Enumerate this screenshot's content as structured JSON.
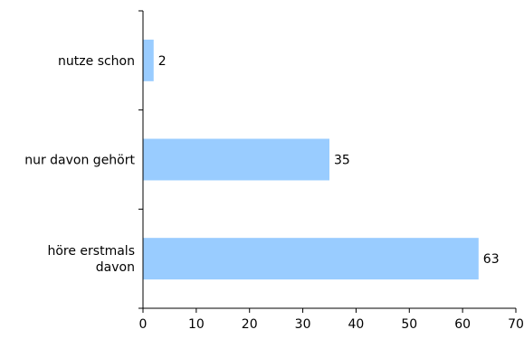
{
  "chart_data": {
    "type": "bar",
    "orientation": "horizontal",
    "categories": [
      [
        "nutze schon"
      ],
      [
        "nur davon gehört"
      ],
      [
        "höre erstmals",
        "davon"
      ]
    ],
    "values": [
      2,
      35,
      63
    ],
    "xlim": [
      0,
      70
    ],
    "xticks": [
      0,
      10,
      20,
      30,
      40,
      50,
      60,
      70
    ],
    "grid": false,
    "legend": "none",
    "bar_color": "#99ccff",
    "data_labels": true
  }
}
